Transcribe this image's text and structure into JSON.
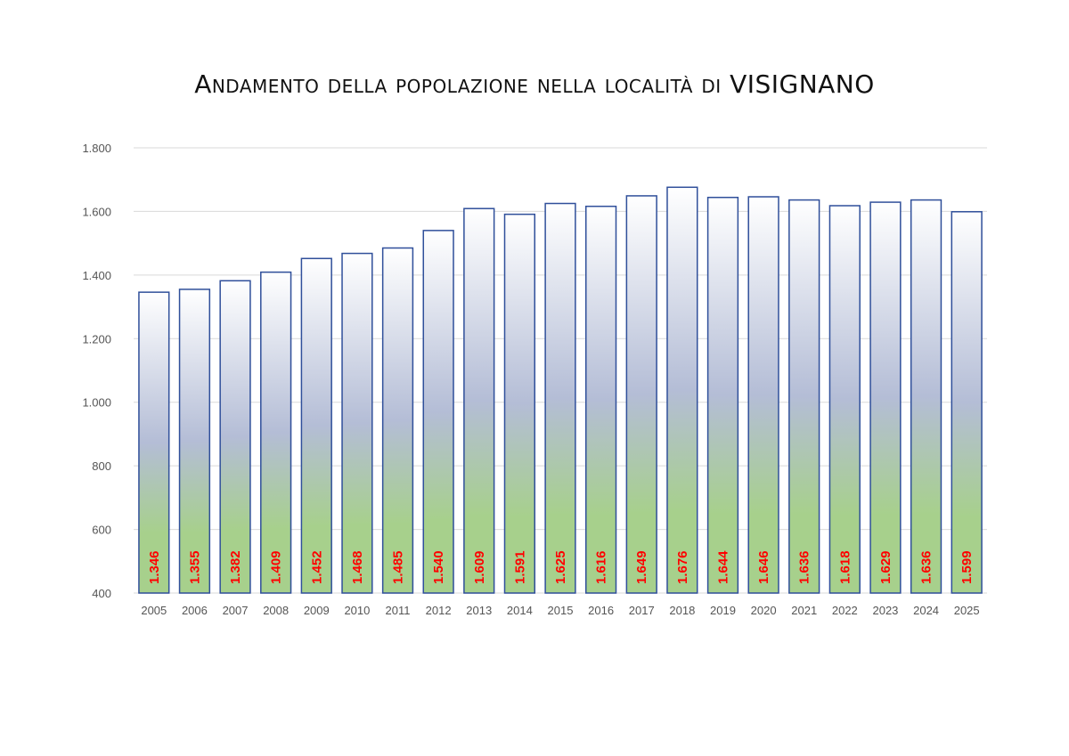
{
  "chart_data": {
    "type": "bar",
    "title": "Andamento della popolazione nella località di VISIGNANO",
    "xlabel": "",
    "ylabel": "",
    "categories": [
      "2005",
      "2006",
      "2007",
      "2008",
      "2009",
      "2010",
      "2011",
      "2012",
      "2013",
      "2014",
      "2015",
      "2016",
      "2017",
      "2018",
      "2019",
      "2020",
      "2021",
      "2022",
      "2023",
      "2024",
      "2025"
    ],
    "values": [
      1346,
      1355,
      1382,
      1409,
      1452,
      1468,
      1485,
      1540,
      1609,
      1591,
      1625,
      1616,
      1649,
      1676,
      1644,
      1646,
      1636,
      1618,
      1629,
      1636,
      1599
    ],
    "value_labels": [
      "1.346",
      "1.355",
      "1.382",
      "1.409",
      "1.452",
      "1.468",
      "1.485",
      "1.540",
      "1.609",
      "1.591",
      "1.625",
      "1.616",
      "1.649",
      "1.676",
      "1.644",
      "1.646",
      "1.636",
      "1.618",
      "1.629",
      "1.636",
      "1.599"
    ],
    "ylim": [
      400,
      1800
    ],
    "y_ticks": [
      400,
      600,
      800,
      1000,
      1200,
      1400,
      1600,
      1800
    ],
    "y_tick_labels": [
      "400",
      "600",
      "800",
      "1.000",
      "1.200",
      "1.400",
      "1.600",
      "1.800"
    ],
    "grid": true,
    "legend": "none",
    "colors": {
      "bar_border": "#2f4f9a",
      "bar_gradient_top": "#ffffff",
      "bar_gradient_mid": "#b4bdd6",
      "bar_gradient_bottom": "#a7d08c",
      "label": "#ff0000",
      "gridline": "#d9d9d9"
    }
  }
}
